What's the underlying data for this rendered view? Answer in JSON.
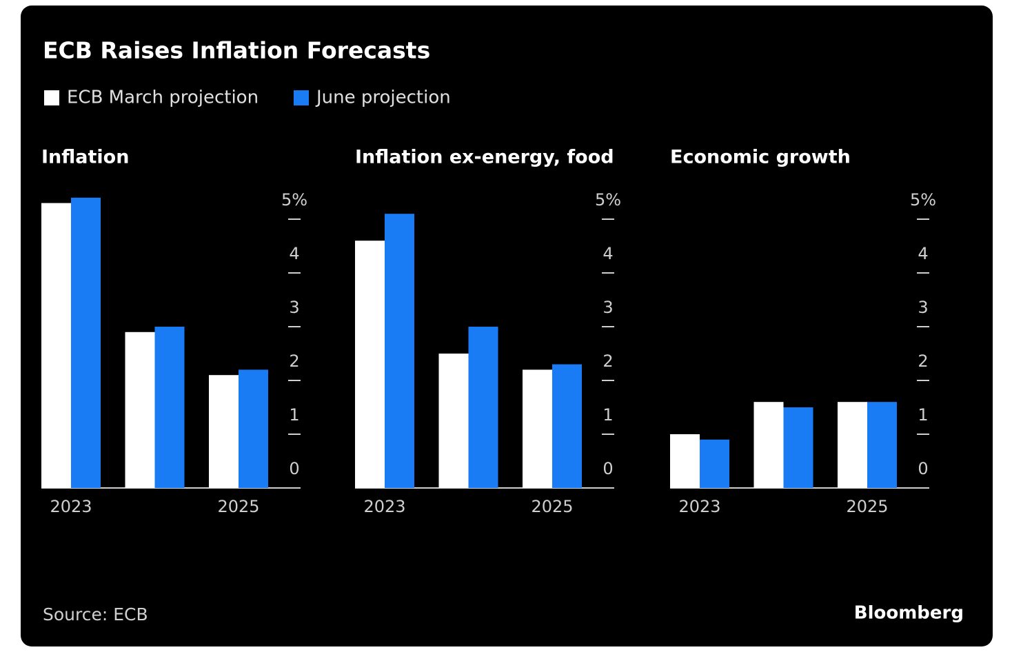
{
  "title": "ECB Raises Inflation Forecasts",
  "source": "Source: ECB",
  "brand": "Bloomberg",
  "chart_data": [
    {
      "type": "bar",
      "title": "Inflation",
      "categories": [
        "2023",
        null,
        "2025"
      ],
      "series": [
        {
          "name": "ECB March projection",
          "color": "#ffffff",
          "values": [
            5.3,
            2.9,
            2.1
          ]
        },
        {
          "name": "June projection",
          "color": "#1a7cf5",
          "values": [
            5.4,
            3.0,
            2.2
          ]
        }
      ],
      "ylim": [
        0,
        5.5
      ],
      "yticks": [
        0,
        1,
        2,
        3,
        4,
        {
          "value": 5,
          "label": "5%"
        }
      ]
    },
    {
      "type": "bar",
      "title": "Inflation ex-energy, food",
      "categories": [
        "2023",
        null,
        "2025"
      ],
      "series": [
        {
          "name": "ECB March projection",
          "color": "#ffffff",
          "values": [
            4.6,
            2.5,
            2.2
          ]
        },
        {
          "name": "June projection",
          "color": "#1a7cf5",
          "values": [
            5.1,
            3.0,
            2.3
          ]
        }
      ],
      "ylim": [
        0,
        5.5
      ],
      "yticks": [
        0,
        1,
        2,
        3,
        4,
        {
          "value": 5,
          "label": "5%"
        }
      ]
    },
    {
      "type": "bar",
      "title": "Economic growth",
      "categories": [
        "2023",
        null,
        "2025"
      ],
      "series": [
        {
          "name": "ECB March projection",
          "color": "#ffffff",
          "values": [
            1.0,
            1.6,
            1.6
          ]
        },
        {
          "name": "June projection",
          "color": "#1a7cf5",
          "values": [
            0.9,
            1.5,
            1.6
          ]
        }
      ],
      "ylim": [
        0,
        5.5
      ],
      "yticks": [
        0,
        1,
        2,
        3,
        4,
        {
          "value": 5,
          "label": "5%"
        }
      ]
    }
  ]
}
